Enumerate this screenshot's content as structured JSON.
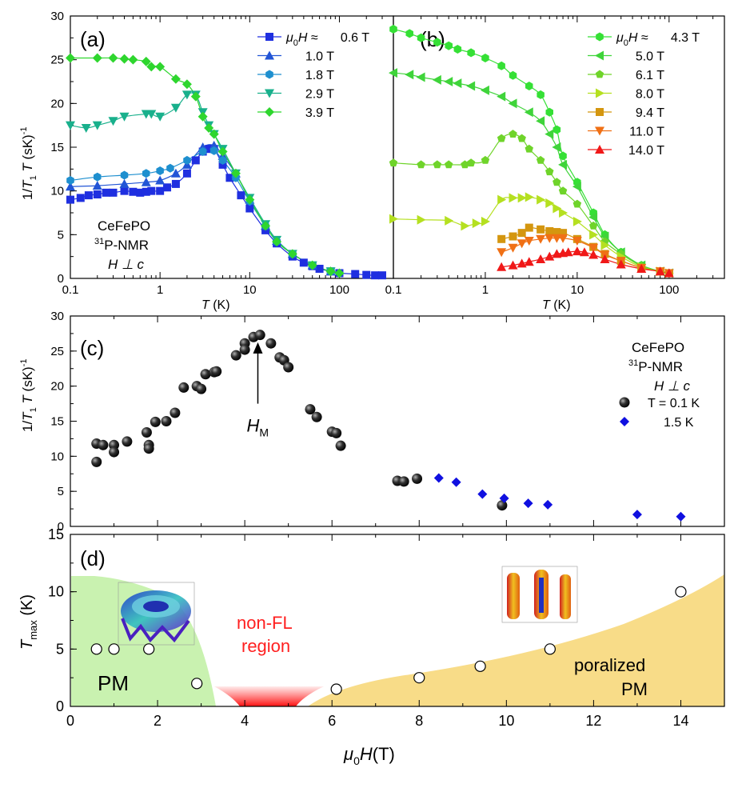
{
  "colors": {
    "c06": "#1f2fe0",
    "c10": "#2255d6",
    "c18": "#1e8fcf",
    "c29": "#19b08c",
    "c39": "#2ed62e",
    "b43": "#35e035",
    "b50": "#3fd43a",
    "b61": "#6fd42a",
    "b80": "#b5e020",
    "b94": "#d4960f",
    "b110": "#f07015",
    "b140": "#f01818",
    "black": "#000000",
    "blue": "#1010e0",
    "pm": "#c9f2b0",
    "ppm": "#f8dc88",
    "nonfl": "#ff2020"
  },
  "chart_data": [
    {
      "id": "a",
      "type": "line",
      "xscale": "log",
      "panel_label": "(a)",
      "xlim": [
        0.1,
        400
      ],
      "ylim": [
        0,
        30
      ],
      "xticks": [
        "0.1",
        "1",
        "10",
        "100"
      ],
      "yticks": [
        "0",
        "5",
        "10",
        "15",
        "20",
        "25",
        "30"
      ],
      "xlabel": "T (K)",
      "ylabel": "1/T1T (sK)-1",
      "annotation": [
        "CeFePO",
        "31P-NMR",
        "H ⊥ c"
      ],
      "legend_prefix": "μ0H ≈",
      "series": [
        {
          "name": "0.6 T",
          "marker": "square",
          "color": "#1f2fe0",
          "x": [
            0.1,
            0.13,
            0.16,
            0.2,
            0.25,
            0.3,
            0.4,
            0.5,
            0.6,
            0.7,
            0.8,
            1.0,
            1.2,
            1.5,
            2.0,
            2.5,
            3.0,
            3.5,
            4.0,
            5.0,
            6.0,
            8.0,
            10,
            15,
            20,
            30,
            40,
            50,
            60,
            80,
            100,
            150,
            200,
            250,
            300
          ],
          "y": [
            9.0,
            9.2,
            9.5,
            9.6,
            9.8,
            9.8,
            10.0,
            9.9,
            9.8,
            9.9,
            10.0,
            10.0,
            10.4,
            10.8,
            12.0,
            13.5,
            14.5,
            14.8,
            14.8,
            13.0,
            11.5,
            9.5,
            8.0,
            5.5,
            4.0,
            2.5,
            1.8,
            1.4,
            1.1,
            0.8,
            0.6,
            0.5,
            0.4,
            0.35,
            0.35
          ]
        },
        {
          "name": "1.0 T",
          "marker": "triangle-up",
          "color": "#2255d6",
          "x": [
            0.1,
            0.2,
            0.4,
            0.7,
            1.0,
            1.5,
            2.0,
            3.0,
            4.0,
            5.0,
            7.0,
            10,
            15,
            20,
            30,
            50,
            80
          ],
          "y": [
            10.5,
            10.6,
            10.8,
            11.0,
            11.2,
            12.0,
            13.0,
            15.0,
            15.2,
            14.0,
            12.0,
            9.0,
            6.0,
            4.3,
            2.8,
            1.5,
            0.8
          ]
        },
        {
          "name": "1.8 T",
          "marker": "hexagon",
          "color": "#1e8fcf",
          "x": [
            0.1,
            0.2,
            0.4,
            0.7,
            1.0,
            1.3,
            2.0,
            3.0,
            4.0,
            5.0,
            7.0,
            10,
            15,
            20,
            30,
            50,
            80
          ],
          "y": [
            11.2,
            11.6,
            11.8,
            12.0,
            12.3,
            12.6,
            13.5,
            14.5,
            14.6,
            13.5,
            11.5,
            8.8,
            6.0,
            4.2,
            2.8,
            1.5,
            0.8
          ]
        },
        {
          "name": "2.9 T",
          "marker": "triangle-down",
          "color": "#19b08c",
          "x": [
            0.1,
            0.15,
            0.2,
            0.3,
            0.4,
            0.7,
            0.8,
            1.0,
            1.5,
            2.0,
            2.5,
            3.0,
            3.5,
            4.0,
            5.0,
            7.0,
            10,
            15,
            20,
            30,
            50,
            80
          ],
          "y": [
            17.5,
            17.2,
            17.5,
            18.0,
            18.5,
            18.8,
            18.8,
            18.5,
            19.5,
            21.0,
            21.0,
            19.0,
            17.5,
            16.5,
            14.8,
            12.0,
            9.2,
            6.2,
            4.4,
            2.8,
            1.5,
            0.8
          ]
        },
        {
          "name": "3.9 T",
          "marker": "diamond",
          "color": "#2ed62e",
          "x": [
            0.1,
            0.2,
            0.3,
            0.4,
            0.5,
            0.7,
            0.8,
            1.0,
            1.5,
            2.0,
            2.5,
            3.0,
            3.5,
            4.0,
            5.0,
            7.0,
            10,
            15,
            20,
            30,
            50,
            80,
            100
          ],
          "y": [
            25.2,
            25.2,
            25.2,
            25.1,
            25.0,
            24.8,
            24.2,
            24.2,
            22.8,
            22.2,
            20.8,
            18.5,
            17.2,
            16.5,
            14.5,
            12.0,
            9.0,
            6.0,
            4.2,
            2.8,
            1.5,
            0.8,
            0.6
          ]
        }
      ]
    },
    {
      "id": "b",
      "type": "line",
      "xscale": "log",
      "panel_label": "(b)",
      "xlim": [
        0.1,
        400
      ],
      "ylim": [
        0,
        30
      ],
      "xticks": [
        "0.1",
        "1",
        "10",
        "100"
      ],
      "xlabel": "T (K)",
      "legend_prefix": "μ0H ≈",
      "series": [
        {
          "name": "4.3 T",
          "marker": "hexagon",
          "color": "#35e035",
          "x": [
            0.1,
            0.15,
            0.2,
            0.3,
            0.4,
            0.5,
            0.7,
            1.0,
            1.5,
            2.0,
            3.0,
            4.0,
            5.0,
            6.0,
            7.0,
            10,
            15,
            20,
            30,
            50,
            80,
            100
          ],
          "y": [
            28.5,
            28.0,
            27.5,
            27.0,
            26.6,
            26.2,
            25.8,
            25.2,
            24.3,
            23.2,
            22.0,
            21.0,
            19.0,
            17.0,
            14.0,
            11.0,
            7.5,
            5.0,
            3.0,
            1.5,
            0.8,
            0.6
          ]
        },
        {
          "name": "5.0 T",
          "marker": "triangle-left",
          "color": "#3fd43a",
          "x": [
            0.1,
            0.15,
            0.2,
            0.3,
            0.4,
            0.5,
            0.7,
            1.0,
            1.5,
            2.0,
            3.0,
            4.0,
            5.0,
            6.0,
            7.0,
            10,
            15,
            20,
            30,
            50,
            80,
            100
          ],
          "y": [
            23.5,
            23.3,
            23.0,
            22.7,
            22.5,
            22.3,
            22.0,
            21.5,
            20.8,
            20.0,
            19.0,
            18.0,
            16.5,
            15.0,
            13.0,
            10.5,
            7.0,
            4.8,
            3.0,
            1.5,
            0.8,
            0.6
          ]
        },
        {
          "name": "6.1 T",
          "marker": "pentagon",
          "color": "#6fd42a",
          "x": [
            0.1,
            0.2,
            0.3,
            0.4,
            0.6,
            0.7,
            1.0,
            1.5,
            2.0,
            2.5,
            3.0,
            4.0,
            5.0,
            6.0,
            7.0,
            10,
            15,
            20,
            30,
            50,
            80,
            100
          ],
          "y": [
            13.2,
            13.0,
            13.0,
            13.0,
            13.0,
            13.2,
            13.5,
            16.0,
            16.5,
            16.0,
            14.8,
            13.5,
            12.2,
            11.0,
            10.0,
            8.5,
            6.0,
            4.2,
            2.8,
            1.4,
            0.8,
            0.6
          ]
        },
        {
          "name": "8.0 T",
          "marker": "triangle-right",
          "color": "#b5e020",
          "x": [
            0.1,
            0.2,
            0.4,
            0.6,
            0.8,
            1.0,
            1.5,
            2.0,
            2.5,
            3.0,
            4.0,
            5.0,
            6.0,
            7.0,
            10,
            15,
            20,
            30,
            50,
            80,
            100
          ],
          "y": [
            6.8,
            6.7,
            6.6,
            6.0,
            6.3,
            6.5,
            9.0,
            9.2,
            9.2,
            9.3,
            9.0,
            8.6,
            8.0,
            7.5,
            6.5,
            5.0,
            3.8,
            2.5,
            1.3,
            0.8,
            0.6
          ]
        },
        {
          "name": "9.4 T",
          "marker": "square",
          "color": "#d4960f",
          "x": [
            1.5,
            2.0,
            2.5,
            3.0,
            4.0,
            5.0,
            6.0,
            7.0,
            10,
            15,
            20,
            30,
            50,
            80,
            100
          ],
          "y": [
            4.5,
            4.8,
            5.2,
            5.8,
            5.6,
            5.4,
            5.3,
            5.2,
            4.5,
            3.6,
            2.8,
            2.0,
            1.2,
            0.8,
            0.6
          ]
        },
        {
          "name": "11.0 T",
          "marker": "triangle-down",
          "color": "#f07015",
          "x": [
            1.5,
            2.0,
            2.5,
            3.0,
            4.0,
            5.0,
            6.0,
            7.0,
            10,
            15,
            20,
            30,
            50,
            80,
            100
          ],
          "y": [
            3.0,
            3.5,
            4.0,
            4.3,
            4.5,
            4.6,
            4.6,
            4.6,
            4.3,
            3.5,
            2.7,
            2.0,
            1.2,
            0.8,
            0.6
          ]
        },
        {
          "name": "14.0 T",
          "marker": "triangle-up",
          "color": "#f01818",
          "x": [
            1.5,
            2.0,
            2.5,
            3.0,
            4.0,
            5.0,
            6.0,
            7.0,
            8.0,
            10,
            12,
            15,
            20,
            30,
            50,
            80,
            100
          ],
          "y": [
            1.3,
            1.5,
            1.7,
            1.9,
            2.2,
            2.5,
            2.8,
            2.9,
            3.0,
            3.1,
            3.0,
            2.7,
            2.2,
            1.6,
            1.1,
            0.8,
            0.6
          ]
        }
      ]
    },
    {
      "id": "c",
      "type": "scatter",
      "panel_label": "(c)",
      "xlim": [
        0,
        15
      ],
      "ylim": [
        0,
        30
      ],
      "yticks": [
        "0",
        "5",
        "10",
        "15",
        "20",
        "25",
        "30"
      ],
      "ylabel": "1/T1T (sK)-1",
      "annotation": [
        "CeFePO",
        "31P-NMR",
        "H ⊥ c"
      ],
      "arrow_label": "HM",
      "arrow_x": 4.3,
      "series": [
        {
          "name": "T = 0.1 K",
          "marker": "sphere",
          "color": "#000000",
          "x": [
            0.6,
            0.6,
            0.75,
            1.0,
            1.0,
            1.3,
            1.75,
            1.8,
            1.8,
            1.95,
            2.2,
            2.4,
            2.6,
            2.9,
            3.0,
            3.1,
            3.3,
            3.35,
            3.8,
            4.0,
            4.0,
            4.2,
            4.35,
            4.6,
            4.8,
            4.9,
            5.0,
            5.5,
            5.65,
            6.0,
            6.1,
            6.2,
            7.5,
            7.65,
            7.95,
            9.9
          ],
          "y": [
            11.8,
            9.2,
            11.6,
            11.6,
            10.6,
            12.1,
            13.4,
            11.6,
            11.1,
            14.9,
            15.0,
            16.2,
            19.8,
            20.0,
            19.6,
            21.7,
            22.0,
            22.1,
            24.4,
            26.1,
            25.2,
            27.0,
            27.3,
            26.1,
            24.1,
            23.7,
            22.7,
            16.7,
            15.6,
            13.5,
            13.3,
            11.5,
            6.5,
            6.4,
            6.8,
            3.0
          ]
        },
        {
          "name": "1.5 K",
          "marker": "diamond",
          "color": "#1010e0",
          "x": [
            8.45,
            8.85,
            9.45,
            9.95,
            10.5,
            10.95,
            13.0,
            14.0
          ],
          "y": [
            6.9,
            6.3,
            4.6,
            4.0,
            3.3,
            3.1,
            1.7,
            1.4
          ]
        }
      ]
    },
    {
      "id": "d",
      "type": "scatter",
      "panel_label": "(d)",
      "xlim": [
        0,
        15
      ],
      "ylim": [
        0,
        15
      ],
      "xticks": [
        "0",
        "2",
        "4",
        "6",
        "8",
        "10",
        "12",
        "14"
      ],
      "yticks": [
        "0",
        "5",
        "10",
        "15"
      ],
      "xlabel": "μ0H(T)",
      "ylabel": "Tmax (K)",
      "regions": [
        "PM",
        "non-FL",
        "region",
        "poralized",
        "PM"
      ],
      "series": [
        {
          "name": "Tmax",
          "marker": "open-circle",
          "color": "#000000",
          "x": [
            0.6,
            1.0,
            1.8,
            2.9,
            6.1,
            8.0,
            9.4,
            11.0,
            14.0
          ],
          "y": [
            5.0,
            5.0,
            5.0,
            2.0,
            1.5,
            2.5,
            3.5,
            5.0,
            10.0
          ]
        }
      ]
    }
  ]
}
